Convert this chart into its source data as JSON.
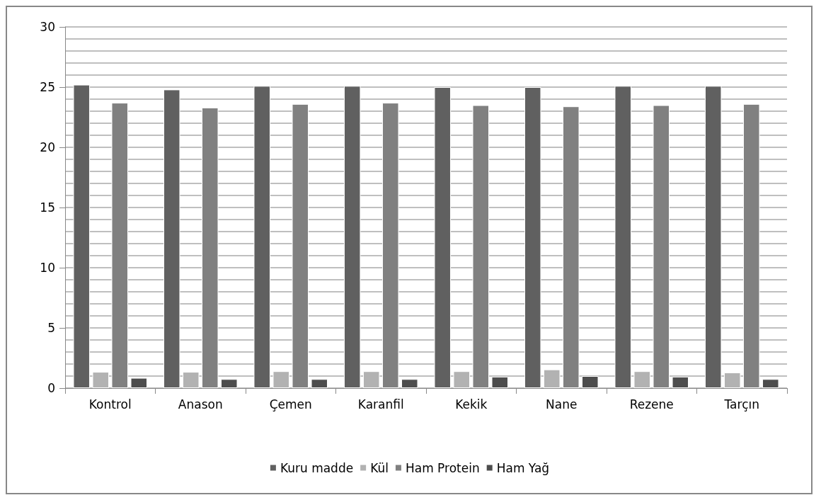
{
  "chart_data": {
    "type": "bar",
    "categories": [
      "Kontrol",
      "Anason",
      "Çemen",
      "Karanfil",
      "Kekik",
      "Nane",
      "Rezene",
      "Tarçın"
    ],
    "series": [
      {
        "name": "Kuru madde",
        "color": "#606060",
        "values": [
          25.2,
          24.8,
          25.1,
          25.1,
          25.0,
          25.0,
          25.1,
          25.1
        ]
      },
      {
        "name": "Kül",
        "color": "#b2b2b2",
        "values": [
          1.35,
          1.35,
          1.4,
          1.4,
          1.4,
          1.55,
          1.4,
          1.3
        ]
      },
      {
        "name": "Ham Protein",
        "color": "#808080",
        "values": [
          23.7,
          23.3,
          23.6,
          23.7,
          23.5,
          23.4,
          23.5,
          23.6
        ]
      },
      {
        "name": "Ham Yağ",
        "color": "#4d4d4d",
        "values": [
          0.85,
          0.75,
          0.75,
          0.75,
          0.95,
          1.0,
          0.95,
          0.75
        ]
      }
    ],
    "ylim": [
      0,
      30
    ],
    "yticks": [
      0,
      {
        "value": 1,
        "label": null
      },
      {
        "value": 2,
        "label": null
      },
      {
        "value": 3,
        "label": null
      },
      {
        "value": 4,
        "label": null
      },
      5,
      {
        "value": 6,
        "label": null
      },
      {
        "value": 7,
        "label": null
      },
      {
        "value": 8,
        "label": null
      },
      {
        "value": 9,
        "label": null
      },
      10,
      {
        "value": 11,
        "label": null
      },
      {
        "value": 12,
        "label": null
      },
      {
        "value": 13,
        "label": null
      },
      {
        "value": 14,
        "label": null
      },
      15,
      {
        "value": 16,
        "label": null
      },
      {
        "value": 17,
        "label": null
      },
      {
        "value": 18,
        "label": null
      },
      {
        "value": 19,
        "label": null
      },
      20,
      {
        "value": 21,
        "label": null
      },
      {
        "value": 22,
        "label": null
      },
      {
        "value": 23,
        "label": null
      },
      {
        "value": 24,
        "label": null
      },
      25,
      {
        "value": 26,
        "label": null
      },
      {
        "value": 27,
        "label": null
      },
      {
        "value": 28,
        "label": null
      },
      {
        "value": 29,
        "label": null
      },
      30
    ],
    "grid": "y",
    "legend": "bottom"
  }
}
